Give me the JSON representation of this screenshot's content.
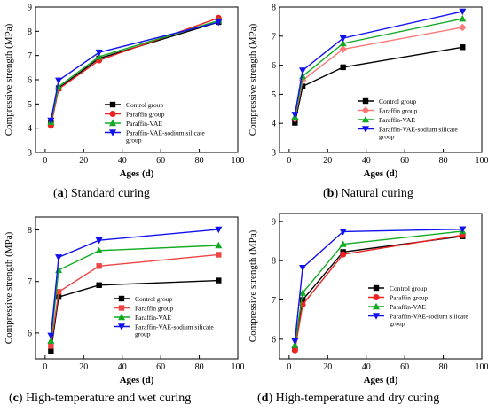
{
  "chart_data": [
    {
      "type": "line",
      "caption_letter": "a",
      "caption_text": "Standard curing",
      "xlabel": "Ages (d)",
      "ylabel": "Compressive strength (MPa)",
      "xlim": [
        -5,
        100
      ],
      "ylim": [
        3,
        9
      ],
      "xticks": [
        0,
        20,
        40,
        60,
        80,
        100
      ],
      "yticks": [
        3,
        4,
        5,
        6,
        7,
        8,
        9
      ],
      "x": [
        3,
        7,
        28,
        90
      ],
      "legend_position": "lower-center",
      "series": [
        {
          "name": "Control group",
          "color": "#000000",
          "marker": "square",
          "values": [
            4.2,
            5.65,
            6.88,
            8.38
          ]
        },
        {
          "name": "Paraffin group",
          "color": "#ee2222",
          "marker": "circle",
          "values": [
            4.1,
            5.62,
            6.8,
            8.55
          ]
        },
        {
          "name": "Paraffin-VAE",
          "color": "#11aa22",
          "marker": "triangle-up",
          "values": [
            4.25,
            5.72,
            6.95,
            8.44
          ]
        },
        {
          "name": "Paraffin-VAE-sodium silicate group",
          "color": "#1111ee",
          "marker": "triangle-down",
          "values": [
            4.32,
            5.97,
            7.13,
            8.37
          ]
        }
      ]
    },
    {
      "type": "line",
      "caption_letter": "b",
      "caption_text": "Natural curing",
      "xlabel": "Ages (d)",
      "ylabel": "Compressive strength (MPa)",
      "xlim": [
        -5,
        100
      ],
      "ylim": [
        3,
        8
      ],
      "xticks": [
        0,
        20,
        40,
        60,
        80,
        100
      ],
      "yticks": [
        3,
        4,
        5,
        6,
        7,
        8
      ],
      "x": [
        3,
        7,
        28,
        90
      ],
      "legend_position": "lower-right",
      "series": [
        {
          "name": "Control group",
          "color": "#000000",
          "marker": "square",
          "values": [
            4.02,
            5.27,
            5.93,
            6.62
          ]
        },
        {
          "name": "Paraffin group",
          "color": "#ff7777",
          "marker": "diamond",
          "values": [
            4.15,
            5.48,
            6.55,
            7.3
          ]
        },
        {
          "name": "Paraffin-VAE",
          "color": "#11aa22",
          "marker": "triangle-up",
          "values": [
            4.22,
            5.62,
            6.75,
            7.6
          ]
        },
        {
          "name": "Paraffin-VAE-sodium silicate group",
          "color": "#1111ee",
          "marker": "triangle-down",
          "values": [
            4.3,
            5.82,
            6.93,
            7.85
          ]
        }
      ]
    },
    {
      "type": "line",
      "caption_letter": "c",
      "caption_text": "High-temperature and wet curing",
      "xlabel": "Ages (d)",
      "ylabel": "Compressive strength (MPa)",
      "xlim": [
        -5,
        100
      ],
      "ylim": [
        5.5,
        8.25
      ],
      "xticks": [
        0,
        20,
        40,
        60,
        80,
        100
      ],
      "yticks": [
        6,
        7,
        8
      ],
      "x": [
        3,
        7,
        28,
        90
      ],
      "legend_position": "lower-right",
      "series": [
        {
          "name": "Control group",
          "color": "#000000",
          "marker": "square",
          "values": [
            5.65,
            6.7,
            6.93,
            7.02
          ]
        },
        {
          "name": "Paraffin group",
          "color": "#ee4444",
          "marker": "square",
          "values": [
            5.75,
            6.8,
            7.3,
            7.52
          ]
        },
        {
          "name": "Paraffin-VAE",
          "color": "#11aa22",
          "marker": "triangle-up",
          "values": [
            5.85,
            7.22,
            7.6,
            7.7
          ]
        },
        {
          "name": "Paraffin-VAE-sodium silicate group",
          "color": "#1111ee",
          "marker": "triangle-down",
          "values": [
            5.95,
            7.47,
            7.8,
            8.01
          ]
        }
      ]
    },
    {
      "type": "line",
      "caption_letter": "d",
      "caption_text": "High-temperature and dry curing",
      "xlabel": "Ages (d)",
      "ylabel": "Compressive strength (MPa)",
      "xlim": [
        -5,
        100
      ],
      "ylim": [
        5.5,
        9.2
      ],
      "xticks": [
        0,
        20,
        40,
        60,
        80,
        100
      ],
      "yticks": [
        6,
        7,
        8,
        9
      ],
      "x": [
        3,
        7,
        28,
        90
      ],
      "legend_position": "lower-right",
      "series": [
        {
          "name": "Control group",
          "color": "#000000",
          "marker": "square",
          "values": [
            5.75,
            7.0,
            8.22,
            8.62
          ]
        },
        {
          "name": "Paraffin group",
          "color": "#ee2222",
          "marker": "circle",
          "values": [
            5.72,
            6.88,
            8.16,
            8.65
          ]
        },
        {
          "name": "Paraffin-VAE",
          "color": "#11aa22",
          "marker": "triangle-up",
          "values": [
            5.85,
            7.18,
            8.42,
            8.75
          ]
        },
        {
          "name": "Paraffin-VAE-sodium silicate group",
          "color": "#1111ee",
          "marker": "triangle-down",
          "values": [
            5.95,
            7.82,
            8.74,
            8.8
          ]
        }
      ]
    }
  ]
}
